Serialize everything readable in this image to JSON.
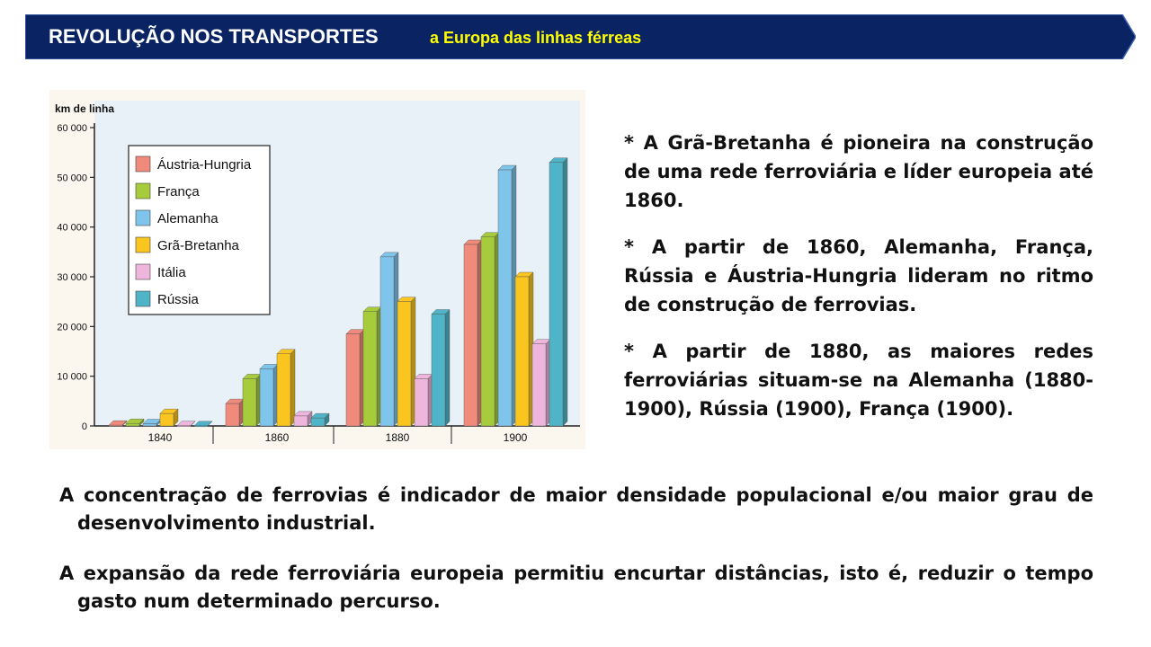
{
  "header": {
    "title": "REVOLUÇÃO NOS TRANSPORTES",
    "subtitle": "a Europa das linhas férreas",
    "bg_color": "#0a2463",
    "title_color": "#ffffff",
    "subtitle_color": "#ffff00"
  },
  "chart_data": {
    "type": "bar",
    "title": "",
    "ylabel": "km de linha",
    "xlabel": "",
    "ylim": [
      0,
      60000
    ],
    "yticks": [
      "0",
      "10 000",
      "20 000",
      "30 000",
      "40 000",
      "50 000",
      "60 000"
    ],
    "categories": [
      "1840",
      "1860",
      "1880",
      "1900"
    ],
    "legend_position": "top-left",
    "grid": false,
    "background": "#e8f1f8",
    "series": [
      {
        "name": "Áustria-Hungria",
        "color": "#f08a7a",
        "values": [
          150,
          4500,
          18500,
          36500
        ]
      },
      {
        "name": "França",
        "color": "#a6cc3c",
        "values": [
          500,
          9500,
          23000,
          38000
        ]
      },
      {
        "name": "Alemanha",
        "color": "#7fc4ea",
        "values": [
          450,
          11500,
          34000,
          51500
        ]
      },
      {
        "name": "Grã-Bretanha",
        "color": "#f9c51e",
        "values": [
          2500,
          14500,
          25000,
          30000
        ]
      },
      {
        "name": "Itália",
        "color": "#eeb5dd",
        "values": [
          50,
          2000,
          9500,
          16500
        ]
      },
      {
        "name": "Rússia",
        "color": "#4fb4c8",
        "values": [
          30,
          1600,
          22500,
          53000
        ]
      }
    ]
  },
  "bullets": [
    "* A Grã-Bretanha é pioneira na construção de uma rede ferroviária e líder europeia até 1860.",
    "* A partir de 1860, Alemanha, França, Rússia e Áustria-Hungria lideram no ritmo de construção de ferrovias.",
    "* A partir de 1880, as maiores redes ferroviárias situam-se na Alemanha (1880-1900), Rússia (1900), França (1900)."
  ],
  "paragraphs": [
    "A concentração de ferrovias é indicador de maior densidade populacional e/ou maior grau de desenvolvimento industrial.",
    "A expansão da rede ferroviária europeia permitiu encurtar distâncias, isto é, reduzir o tempo gasto num determinado percurso."
  ]
}
